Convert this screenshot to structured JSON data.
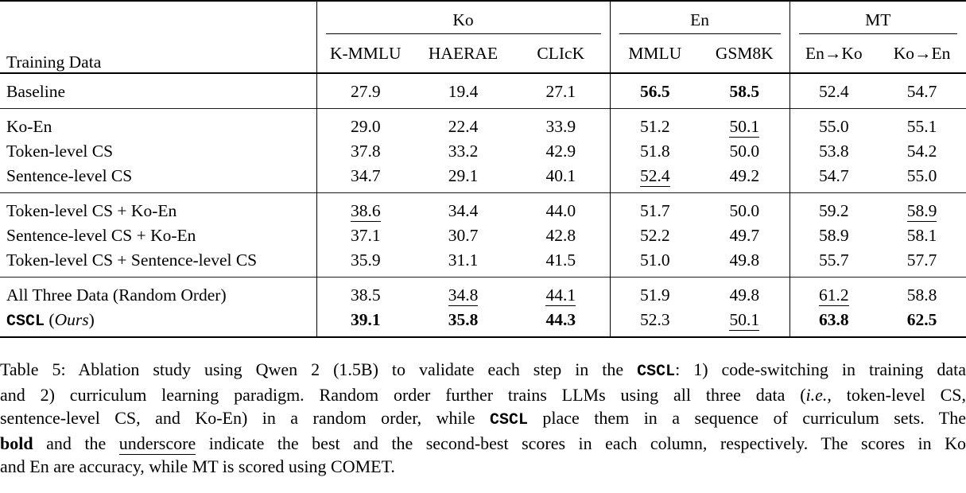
{
  "colors": {
    "background": "#ffffff",
    "text": "#000000",
    "rule": "#000000"
  },
  "table": {
    "corner_label": "Training Data",
    "groups_header": [
      {
        "label": "Ko",
        "cols": [
          "K-MMLU",
          "HAERAE",
          "CLIcK"
        ]
      },
      {
        "label": "En",
        "cols": [
          "MMLU",
          "GSM8K"
        ]
      },
      {
        "label": "MT",
        "cols": [
          "En→Ko",
          "Ko→En"
        ]
      }
    ],
    "body": [
      {
        "rows": [
          {
            "label_parts": [
              {
                "t": "Baseline"
              }
            ],
            "cells": [
              {
                "v": "27.9"
              },
              {
                "v": "19.4"
              },
              {
                "v": "27.1"
              },
              {
                "v": "56.5",
                "f": "b"
              },
              {
                "v": "58.5",
                "f": "b"
              },
              {
                "v": "52.4"
              },
              {
                "v": "54.7"
              }
            ]
          }
        ]
      },
      {
        "rows": [
          {
            "label_parts": [
              {
                "t": "Ko-En"
              }
            ],
            "cells": [
              {
                "v": "29.0"
              },
              {
                "v": "22.4"
              },
              {
                "v": "33.9"
              },
              {
                "v": "51.2"
              },
              {
                "v": "50.1",
                "f": "u"
              },
              {
                "v": "55.0"
              },
              {
                "v": "55.1"
              }
            ]
          },
          {
            "label_parts": [
              {
                "t": "Token-level CS"
              }
            ],
            "cells": [
              {
                "v": "37.8"
              },
              {
                "v": "33.2"
              },
              {
                "v": "42.9"
              },
              {
                "v": "51.8"
              },
              {
                "v": "50.0"
              },
              {
                "v": "53.8"
              },
              {
                "v": "54.2"
              }
            ]
          },
          {
            "label_parts": [
              {
                "t": "Sentence-level CS"
              }
            ],
            "cells": [
              {
                "v": "34.7"
              },
              {
                "v": "29.1"
              },
              {
                "v": "40.1"
              },
              {
                "v": "52.4",
                "f": "u"
              },
              {
                "v": "49.2"
              },
              {
                "v": "54.7"
              },
              {
                "v": "55.0"
              }
            ]
          }
        ]
      },
      {
        "rows": [
          {
            "label_parts": [
              {
                "t": "Token-level CS + Ko-En"
              }
            ],
            "cells": [
              {
                "v": "38.6",
                "f": "u"
              },
              {
                "v": "34.4"
              },
              {
                "v": "44.0"
              },
              {
                "v": "51.7"
              },
              {
                "v": "50.0"
              },
              {
                "v": "59.2"
              },
              {
                "v": "58.9",
                "f": "u"
              }
            ]
          },
          {
            "label_parts": [
              {
                "t": "Sentence-level CS + Ko-En"
              }
            ],
            "cells": [
              {
                "v": "37.1"
              },
              {
                "v": "30.7"
              },
              {
                "v": "42.8"
              },
              {
                "v": "52.2"
              },
              {
                "v": "49.7"
              },
              {
                "v": "58.9"
              },
              {
                "v": "58.1"
              }
            ]
          },
          {
            "label_parts": [
              {
                "t": "Token-level CS + Sentence-level CS"
              }
            ],
            "cells": [
              {
                "v": "35.9"
              },
              {
                "v": "31.1"
              },
              {
                "v": "41.5"
              },
              {
                "v": "51.0"
              },
              {
                "v": "49.8"
              },
              {
                "v": "55.7"
              },
              {
                "v": "57.7"
              }
            ]
          }
        ]
      },
      {
        "rows": [
          {
            "label_parts": [
              {
                "t": "All Three Data (Random Order)"
              }
            ],
            "cells": [
              {
                "v": "38.5"
              },
              {
                "v": "34.8",
                "f": "u"
              },
              {
                "v": "44.1",
                "f": "u"
              },
              {
                "v": "51.9"
              },
              {
                "v": "49.8"
              },
              {
                "v": "61.2",
                "f": "u"
              },
              {
                "v": "58.8"
              }
            ]
          },
          {
            "label_parts": [
              {
                "t": "CSCL",
                "s": "mono"
              },
              {
                "t": " ("
              },
              {
                "t": "Ours",
                "s": "italic"
              },
              {
                "t": ")"
              }
            ],
            "cells": [
              {
                "v": "39.1",
                "f": "b"
              },
              {
                "v": "35.8",
                "f": "b"
              },
              {
                "v": "44.3",
                "f": "b"
              },
              {
                "v": "52.3"
              },
              {
                "v": "50.1",
                "f": "u"
              },
              {
                "v": "63.8",
                "f": "b"
              },
              {
                "v": "62.5",
                "f": "b"
              }
            ]
          }
        ]
      }
    ]
  },
  "caption": {
    "lines": [
      [
        {
          "t": "Table 5: Ablation study using Qwen 2 (1.5B) to validate each step in the "
        },
        {
          "t": "CSCL",
          "s": "mono"
        },
        {
          "t": ": 1) code-switching in training data"
        }
      ],
      [
        {
          "t": "and 2) curriculum learning paradigm. Random order further trains LLMs using all three data ("
        },
        {
          "t": "i.e.",
          "s": "italic"
        },
        {
          "t": ", token-level CS,"
        }
      ],
      [
        {
          "t": "sentence-level CS, and Ko-En) in a random order, while "
        },
        {
          "t": "CSCL",
          "s": "mono"
        },
        {
          "t": " place them in a sequence of curriculum sets. The"
        }
      ],
      [
        {
          "t": "bold",
          "s": "bold"
        },
        {
          "t": " and the "
        },
        {
          "t": "underscore",
          "s": "underline"
        },
        {
          "t": " indicate the best and the second-best scores in each column, respectively. The scores in Ko"
        }
      ],
      [
        {
          "t": "and En are accuracy, while MT is scored using COMET."
        }
      ]
    ]
  }
}
